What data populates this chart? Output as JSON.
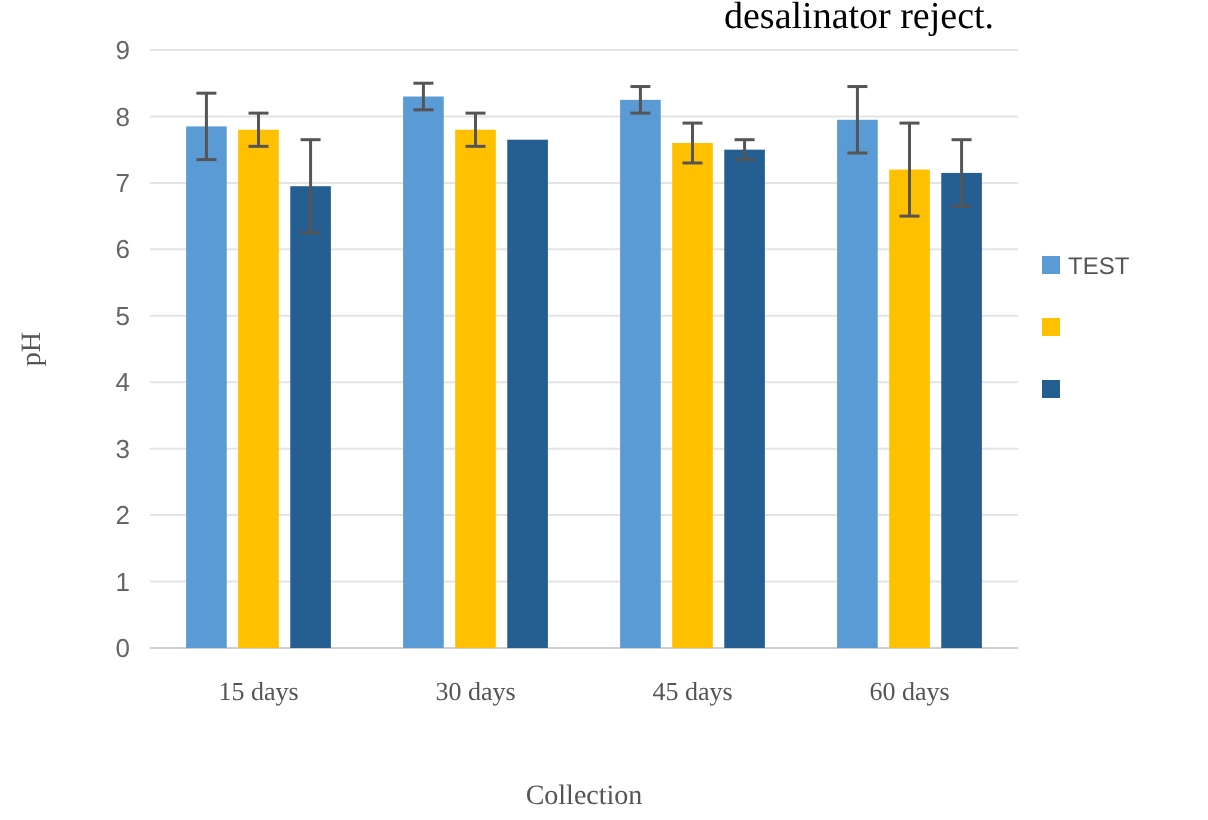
{
  "chart_data": {
    "type": "bar",
    "xlabel": "Collection",
    "ylabel": "pH",
    "annotations": [
      "desalinator reject."
    ],
    "categories": [
      "15 days",
      "30 days",
      "45 days",
      "60 days"
    ],
    "series": [
      {
        "name": "TEST",
        "color": "#5b9bd5",
        "values": [
          7.85,
          8.3,
          8.25,
          7.95
        ],
        "errors": [
          0.5,
          0.2,
          0.2,
          0.5
        ]
      },
      {
        "color": "#ffc000",
        "values": [
          7.8,
          7.8,
          7.6,
          7.2
        ],
        "errors": [
          0.25,
          0.25,
          0.3,
          0.7
        ]
      },
      {
        "color": "#255e91",
        "values": [
          6.95,
          7.65,
          7.5,
          7.15
        ],
        "errors": [
          0.7,
          null,
          0.15,
          0.5
        ]
      }
    ],
    "ylim": [
      0,
      9
    ],
    "yticks": [
      0,
      1,
      2,
      3,
      4,
      5,
      6,
      7,
      8,
      9
    ],
    "grid": "y",
    "legend": "right"
  }
}
